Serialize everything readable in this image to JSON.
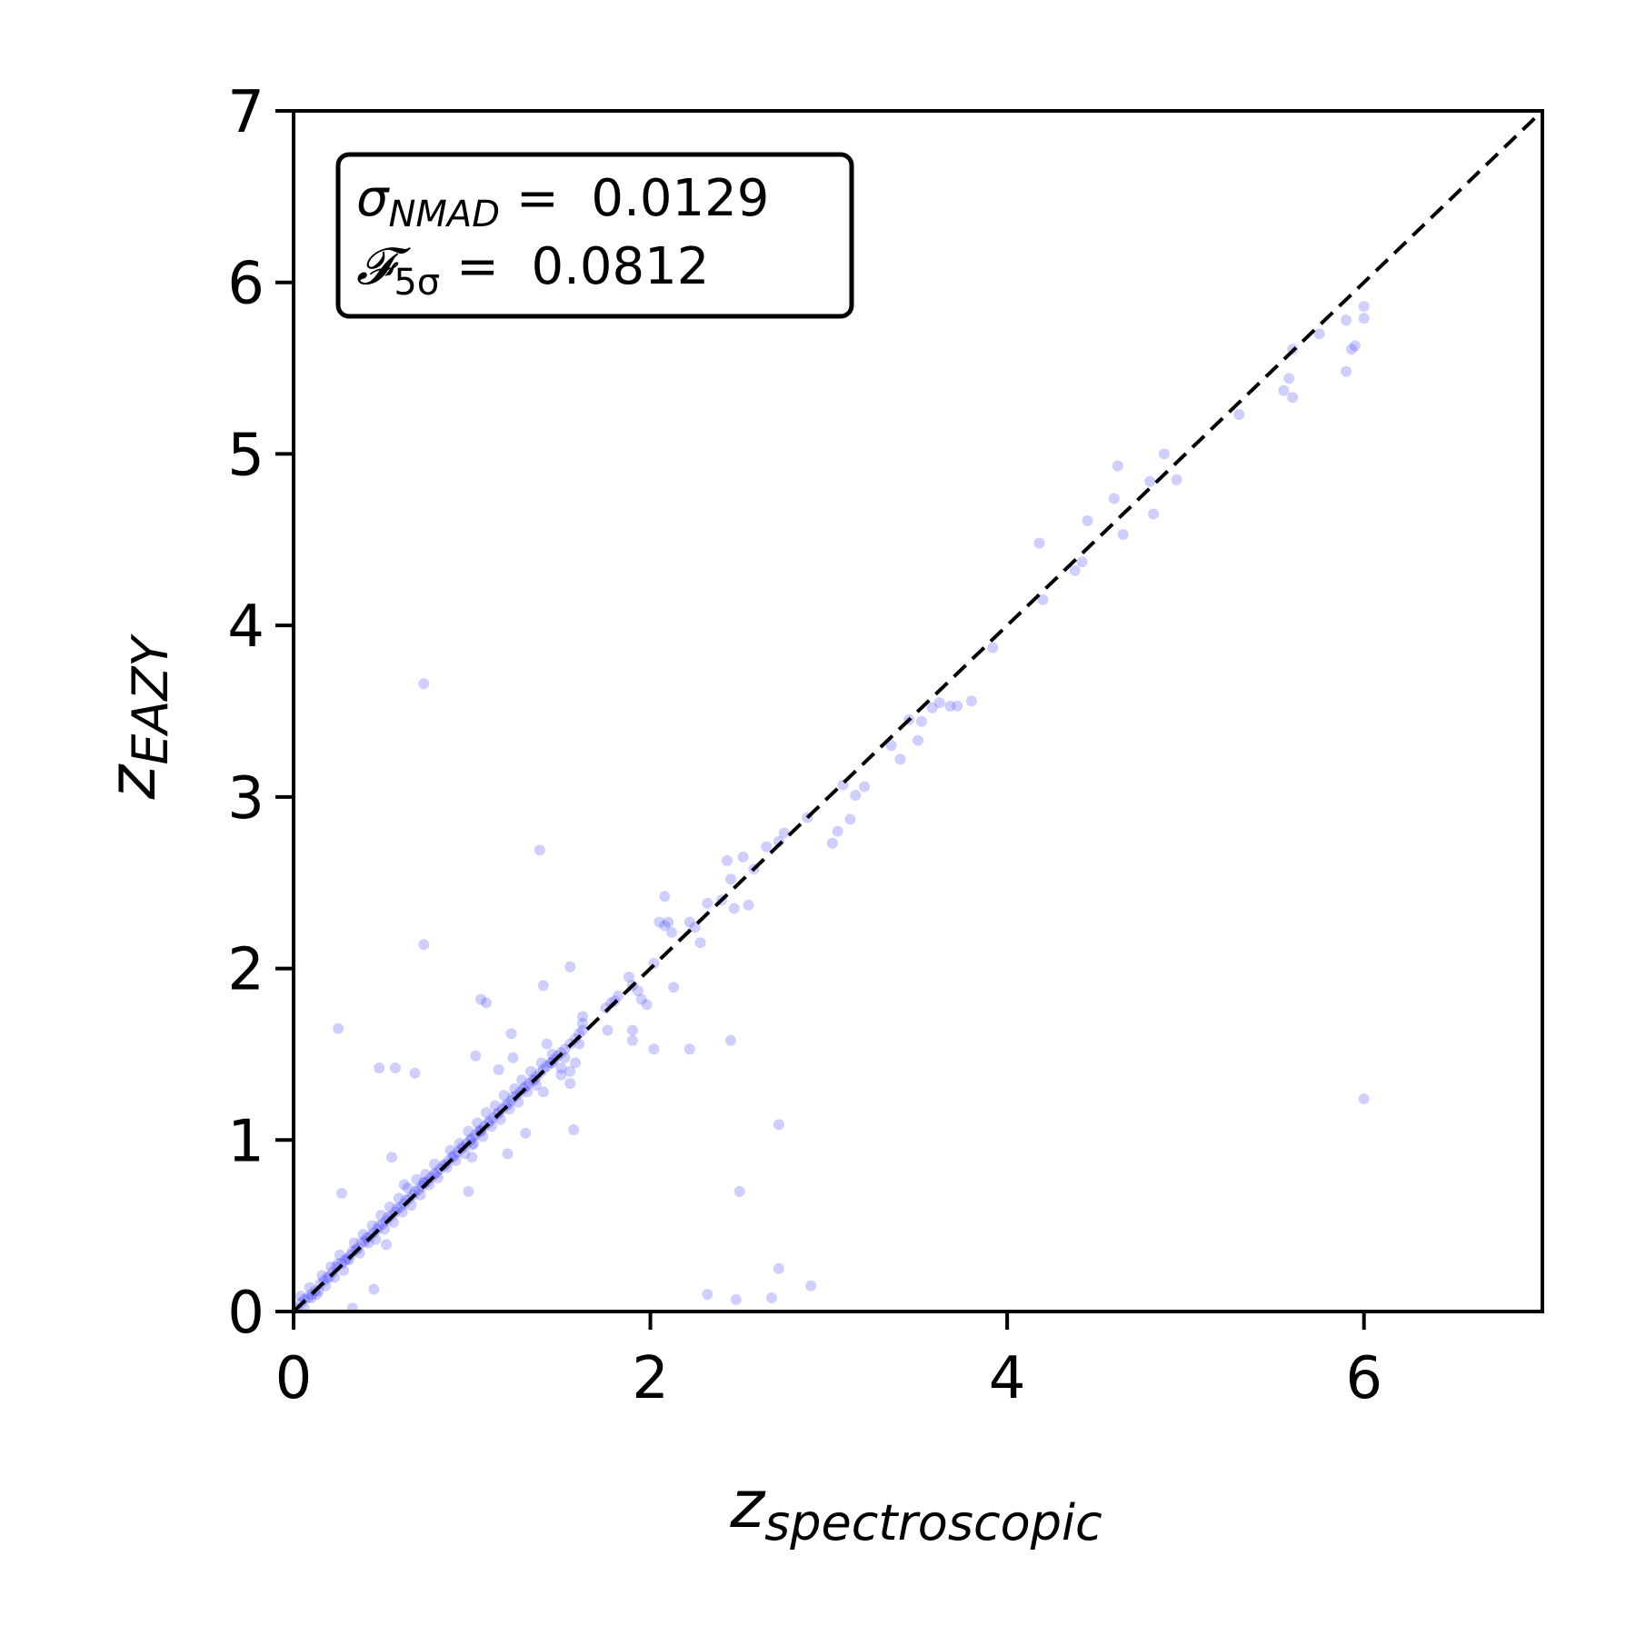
{
  "chart_data": {
    "type": "scatter",
    "xlim": [
      0,
      7
    ],
    "ylim": [
      0,
      7
    ],
    "x_ticks": [
      "0",
      "2",
      "4",
      "6"
    ],
    "y_ticks": [
      "0",
      "1",
      "2",
      "3",
      "4",
      "5",
      "6",
      "7"
    ],
    "xlabel_main": "z",
    "xlabel_sub": "spectroscopic",
    "ylabel_main": "z",
    "ylabel_sub": "EAZY",
    "grid": false,
    "reference_line": {
      "style": "dashed",
      "color": "#000000",
      "from": [
        0,
        0
      ],
      "to": [
        7,
        7
      ]
    },
    "point_color": "#3b3bff",
    "point_opacity": 0.25,
    "stats": {
      "sigma_symbol": "σ",
      "sigma_sub": "NMAD",
      "sigma_value": " =  0.0129",
      "f_symbol": "𝓕",
      "f_sub": "5σ",
      "f_value": " =  0.0812",
      "placement": "top-left"
    },
    "points": [
      [
        0.02,
        0.02
      ],
      [
        0.04,
        0.05
      ],
      [
        0.06,
        0.07
      ],
      [
        0.08,
        0.08
      ],
      [
        0.1,
        0.1
      ],
      [
        0.12,
        0.12
      ],
      [
        0.13,
        0.1
      ],
      [
        0.15,
        0.16
      ],
      [
        0.17,
        0.18
      ],
      [
        0.19,
        0.2
      ],
      [
        0.2,
        0.2
      ],
      [
        0.22,
        0.23
      ],
      [
        0.24,
        0.26
      ],
      [
        0.25,
        0.28
      ],
      [
        0.27,
        0.28
      ],
      [
        0.29,
        0.3
      ],
      [
        0.3,
        0.31
      ],
      [
        0.32,
        0.33
      ],
      [
        0.33,
        0.35
      ],
      [
        0.35,
        0.36
      ],
      [
        0.36,
        0.37
      ],
      [
        0.38,
        0.4
      ],
      [
        0.4,
        0.41
      ],
      [
        0.41,
        0.43
      ],
      [
        0.43,
        0.44
      ],
      [
        0.45,
        0.46
      ],
      [
        0.47,
        0.48
      ],
      [
        0.48,
        0.5
      ],
      [
        0.5,
        0.51
      ],
      [
        0.52,
        0.53
      ],
      [
        0.53,
        0.55
      ],
      [
        0.55,
        0.56
      ],
      [
        0.57,
        0.58
      ],
      [
        0.58,
        0.6
      ],
      [
        0.6,
        0.61
      ],
      [
        0.62,
        0.63
      ],
      [
        0.63,
        0.65
      ],
      [
        0.65,
        0.66
      ],
      [
        0.67,
        0.68
      ],
      [
        0.68,
        0.7
      ],
      [
        0.7,
        0.71
      ],
      [
        0.72,
        0.73
      ],
      [
        0.73,
        0.75
      ],
      [
        0.75,
        0.76
      ],
      [
        0.77,
        0.78
      ],
      [
        0.79,
        0.8
      ],
      [
        0.8,
        0.81
      ],
      [
        0.82,
        0.83
      ],
      [
        0.84,
        0.85
      ],
      [
        0.85,
        0.86
      ],
      [
        0.87,
        0.88
      ],
      [
        0.89,
        0.9
      ],
      [
        0.9,
        0.91
      ],
      [
        0.92,
        0.93
      ],
      [
        0.94,
        0.95
      ],
      [
        0.95,
        0.96
      ],
      [
        0.97,
        0.98
      ],
      [
        0.99,
        1.0
      ],
      [
        1.0,
        1.01
      ],
      [
        1.02,
        1.03
      ],
      [
        1.04,
        1.05
      ],
      [
        1.05,
        1.06
      ],
      [
        1.07,
        1.08
      ],
      [
        1.09,
        1.1
      ],
      [
        1.1,
        1.11
      ],
      [
        1.12,
        1.13
      ],
      [
        1.14,
        1.15
      ],
      [
        1.15,
        1.16
      ],
      [
        1.17,
        1.18
      ],
      [
        1.19,
        1.2
      ],
      [
        1.2,
        1.21
      ],
      [
        1.22,
        1.23
      ],
      [
        1.23,
        1.25
      ],
      [
        1.25,
        1.26
      ],
      [
        1.27,
        1.28
      ],
      [
        1.29,
        1.3
      ],
      [
        1.3,
        1.31
      ],
      [
        1.32,
        1.33
      ],
      [
        1.34,
        1.35
      ],
      [
        1.36,
        1.37
      ],
      [
        1.38,
        1.39
      ],
      [
        1.4,
        1.41
      ],
      [
        1.42,
        1.43
      ],
      [
        1.44,
        1.45
      ],
      [
        1.46,
        1.47
      ],
      [
        1.48,
        1.49
      ],
      [
        1.5,
        1.51
      ],
      [
        1.52,
        1.53
      ],
      [
        1.55,
        1.56
      ],
      [
        1.58,
        1.59
      ],
      [
        1.6,
        1.62
      ],
      [
        1.62,
        1.64
      ],
      [
        1.62,
        1.68
      ],
      [
        1.62,
        1.72
      ],
      [
        1.6,
        1.56
      ],
      [
        1.58,
        1.45
      ],
      [
        1.55,
        1.4
      ],
      [
        1.52,
        1.48
      ],
      [
        1.5,
        1.38
      ],
      [
        1.45,
        1.45
      ],
      [
        0.06,
        0.02
      ],
      [
        0.1,
        0.08
      ],
      [
        0.14,
        0.12
      ],
      [
        0.18,
        0.15
      ],
      [
        0.23,
        0.2
      ],
      [
        0.28,
        0.24
      ],
      [
        0.31,
        0.3
      ],
      [
        0.37,
        0.34
      ],
      [
        0.42,
        0.4
      ],
      [
        0.46,
        0.42
      ],
      [
        0.51,
        0.48
      ],
      [
        0.56,
        0.52
      ],
      [
        0.61,
        0.58
      ],
      [
        0.66,
        0.62
      ],
      [
        0.71,
        0.68
      ],
      [
        0.76,
        0.74
      ],
      [
        0.81,
        0.78
      ],
      [
        0.86,
        0.84
      ],
      [
        0.91,
        0.88
      ],
      [
        0.96,
        0.92
      ],
      [
        1.01,
        0.98
      ],
      [
        1.06,
        1.02
      ],
      [
        1.11,
        1.08
      ],
      [
        1.16,
        1.12
      ],
      [
        1.21,
        1.18
      ],
      [
        1.26,
        1.22
      ],
      [
        1.31,
        1.28
      ],
      [
        1.36,
        1.32
      ],
      [
        0.04,
        0.09
      ],
      [
        0.09,
        0.14
      ],
      [
        0.16,
        0.21
      ],
      [
        0.21,
        0.26
      ],
      [
        0.26,
        0.33
      ],
      [
        0.34,
        0.4
      ],
      [
        0.39,
        0.45
      ],
      [
        0.44,
        0.5
      ],
      [
        0.49,
        0.56
      ],
      [
        0.54,
        0.61
      ],
      [
        0.59,
        0.66
      ],
      [
        0.64,
        0.72
      ],
      [
        0.69,
        0.77
      ],
      [
        0.74,
        0.8
      ],
      [
        0.79,
        0.86
      ],
      [
        0.88,
        0.94
      ],
      [
        0.93,
        0.98
      ],
      [
        0.98,
        1.05
      ],
      [
        1.03,
        1.1
      ],
      [
        1.08,
        1.16
      ],
      [
        1.13,
        1.2
      ],
      [
        1.18,
        1.26
      ],
      [
        1.24,
        1.3
      ],
      [
        1.28,
        1.35
      ],
      [
        1.33,
        1.4
      ],
      [
        1.39,
        1.45
      ],
      [
        0.33,
        0.02
      ],
      [
        0.45,
        0.13
      ],
      [
        0.52,
        0.39
      ],
      [
        0.55,
        0.9
      ],
      [
        0.62,
        0.74
      ],
      [
        0.73,
        0.75
      ],
      [
        0.27,
        0.69
      ],
      [
        0.98,
        0.7
      ],
      [
        1.0,
        0.9
      ],
      [
        1.0,
        0.97
      ],
      [
        1.05,
        1.05
      ],
      [
        1.2,
        0.92
      ],
      [
        1.3,
        1.04
      ],
      [
        1.35,
        1.35
      ],
      [
        1.4,
        1.28
      ],
      [
        1.5,
        1.42
      ],
      [
        1.55,
        1.33
      ],
      [
        0.25,
        1.65
      ],
      [
        0.48,
        1.42
      ],
      [
        0.57,
        1.42
      ],
      [
        0.68,
        1.39
      ],
      [
        0.73,
        2.14
      ],
      [
        0.73,
        3.66
      ],
      [
        1.02,
        1.49
      ],
      [
        1.05,
        1.82
      ],
      [
        1.08,
        1.8
      ],
      [
        1.15,
        1.41
      ],
      [
        1.22,
        1.62
      ],
      [
        1.23,
        1.48
      ],
      [
        1.38,
        2.69
      ],
      [
        1.4,
        1.9
      ],
      [
        1.42,
        1.56
      ],
      [
        1.45,
        1.5
      ],
      [
        1.55,
        2.01
      ],
      [
        1.57,
        1.06
      ],
      [
        1.75,
        1.77
      ],
      [
        1.78,
        1.8
      ],
      [
        1.82,
        1.84
      ],
      [
        1.88,
        1.95
      ],
      [
        1.9,
        1.9
      ],
      [
        1.93,
        1.87
      ],
      [
        1.95,
        1.82
      ],
      [
        1.98,
        1.79
      ],
      [
        2.02,
        2.03
      ],
      [
        2.05,
        2.27
      ],
      [
        2.08,
        2.25
      ],
      [
        2.1,
        2.27
      ],
      [
        2.12,
        2.21
      ],
      [
        2.13,
        1.89
      ],
      [
        2.22,
        2.27
      ],
      [
        2.25,
        2.24
      ],
      [
        2.28,
        2.15
      ],
      [
        2.32,
        2.38
      ],
      [
        2.4,
        2.4
      ],
      [
        2.43,
        2.63
      ],
      [
        2.45,
        2.52
      ],
      [
        2.47,
        2.35
      ],
      [
        2.52,
        2.65
      ],
      [
        2.55,
        2.37
      ],
      [
        2.58,
        2.58
      ],
      [
        2.65,
        2.71
      ],
      [
        2.72,
        2.74
      ],
      [
        2.75,
        2.79
      ],
      [
        2.88,
        2.88
      ],
      [
        1.76,
        1.64
      ],
      [
        1.8,
        1.81
      ],
      [
        1.9,
        1.64
      ],
      [
        1.9,
        1.58
      ],
      [
        2.02,
        1.53
      ],
      [
        2.08,
        2.42
      ],
      [
        2.22,
        1.53
      ],
      [
        2.45,
        1.58
      ],
      [
        2.5,
        0.7
      ],
      [
        2.72,
        1.09
      ],
      [
        2.32,
        0.1
      ],
      [
        2.48,
        0.07
      ],
      [
        2.68,
        0.08
      ],
      [
        2.72,
        0.25
      ],
      [
        2.9,
        0.15
      ],
      [
        3.02,
        2.73
      ],
      [
        3.05,
        2.8
      ],
      [
        3.08,
        3.07
      ],
      [
        3.12,
        2.87
      ],
      [
        3.15,
        3.01
      ],
      [
        3.2,
        3.06
      ],
      [
        3.35,
        3.3
      ],
      [
        3.4,
        3.22
      ],
      [
        3.45,
        3.45
      ],
      [
        3.5,
        3.33
      ],
      [
        3.52,
        3.44
      ],
      [
        3.58,
        3.52
      ],
      [
        3.62,
        3.55
      ],
      [
        3.68,
        3.53
      ],
      [
        3.72,
        3.53
      ],
      [
        3.8,
        3.56
      ],
      [
        3.92,
        3.87
      ],
      [
        4.18,
        4.48
      ],
      [
        4.2,
        4.15
      ],
      [
        4.38,
        4.32
      ],
      [
        4.42,
        4.37
      ],
      [
        4.45,
        4.61
      ],
      [
        4.6,
        4.74
      ],
      [
        4.62,
        4.93
      ],
      [
        4.65,
        4.53
      ],
      [
        4.8,
        4.84
      ],
      [
        4.82,
        4.65
      ],
      [
        4.88,
        5.0
      ],
      [
        4.95,
        4.85
      ],
      [
        5.3,
        5.23
      ],
      [
        5.55,
        5.37
      ],
      [
        5.58,
        5.44
      ],
      [
        5.6,
        5.33
      ],
      [
        5.6,
        5.61
      ],
      [
        5.75,
        5.7
      ],
      [
        5.9,
        5.78
      ],
      [
        5.9,
        5.48
      ],
      [
        5.93,
        5.61
      ],
      [
        5.95,
        5.63
      ],
      [
        6.0,
        5.86
      ],
      [
        6.0,
        5.79
      ],
      [
        6.0,
        1.24
      ]
    ]
  }
}
